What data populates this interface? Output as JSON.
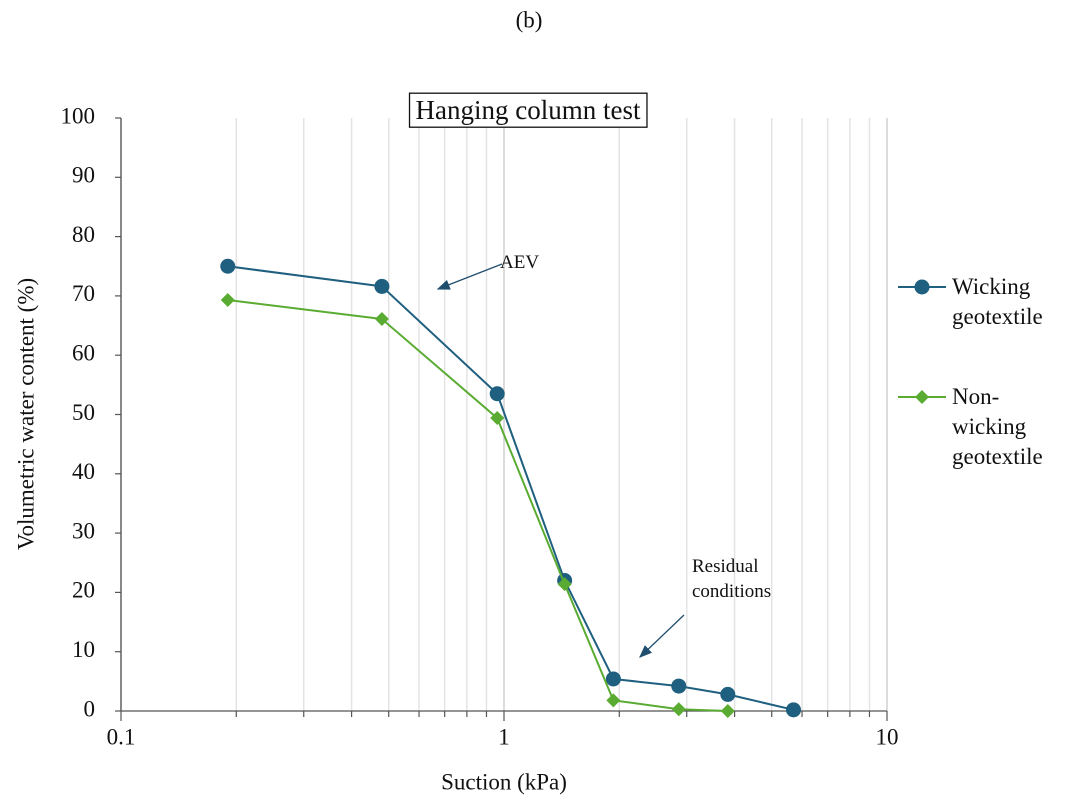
{
  "chart_data": {
    "type": "line",
    "title": "(b)",
    "subtitle": "Hanging column test",
    "x_label": "Suction (kPa)",
    "y_label": "Volumetric water content (%)",
    "x_log": true,
    "xlim": [
      0.1,
      10
    ],
    "xticks": [
      0.1,
      1,
      10
    ],
    "x_minor_ticks": [
      0.2,
      0.3,
      0.4,
      0.5,
      0.6,
      0.7,
      0.8,
      0.9,
      2,
      3,
      4,
      5,
      6,
      7,
      8,
      9
    ],
    "x_grid": true,
    "ylim": [
      0,
      100
    ],
    "yticks": [
      0,
      10,
      20,
      30,
      40,
      50,
      60,
      70,
      80,
      90,
      100
    ],
    "legend": "right",
    "x": [
      0.19,
      0.48,
      0.96,
      1.44,
      1.93,
      2.86,
      3.84,
      5.7
    ],
    "series": [
      {
        "name": "Wicking geotextile",
        "color": "#1f5f7f",
        "marker": "circle",
        "values": [
          75,
          71.6,
          53.5,
          22,
          5.4,
          4.2,
          2.8,
          0.2
        ]
      },
      {
        "name": "Non-wicking geotextile",
        "color": "#5aab32",
        "marker": "diamond",
        "values": [
          69.3,
          66.1,
          49.4,
          21.4,
          1.8,
          0.3,
          0.0,
          null
        ]
      }
    ],
    "annotations": [
      "AEV",
      "Residual conditions"
    ]
  }
}
